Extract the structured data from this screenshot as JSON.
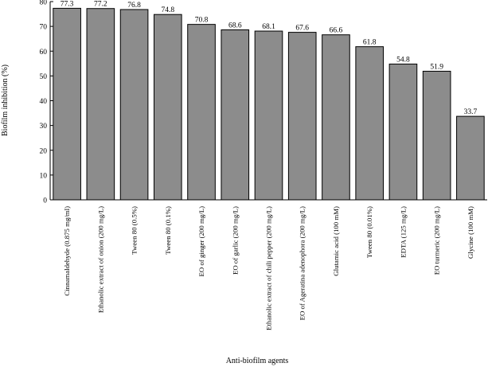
{
  "chart_data": {
    "type": "bar",
    "title": "",
    "xlabel": "Anti-biofilm agents",
    "ylabel": "Biofilm inhibition (%)",
    "ylim": [
      0,
      80
    ],
    "yticks": [
      0,
      10,
      20,
      30,
      40,
      50,
      60,
      70,
      80
    ],
    "categories": [
      "Cinnamaldehyde (0.875 mg/ml)",
      "Ethanolic extract of onion (200 mg/L)",
      "Tween 80 (0.5%)",
      "Tween 80 (0.1%)",
      "EO of ginger (200 mg/L)",
      "EO of garlic (200 mg/L)",
      "Ethanolic extract of chili pepper (200 mg/L)",
      "EO of Ageratina adenophora (200 mg/L)",
      "Glutamic acid (100 mM)",
      "Tween 80 (0.01%)",
      "EDTA (125 mg/L)",
      "EO turmeric (200 mg/L)",
      "Glycine (100 mM)"
    ],
    "values": [
      77.3,
      77.2,
      76.8,
      74.8,
      70.8,
      68.6,
      68.1,
      67.6,
      66.6,
      61.8,
      54.8,
      51.9,
      33.7
    ],
    "value_labels": [
      "77.3",
      "77.2",
      "76.8",
      "74.8",
      "70.8",
      "68.6",
      "68.1",
      "67.6",
      "66.6",
      "61.8",
      "54.8",
      "51.9",
      "33.7"
    ],
    "bar_color": "#8c8c8c",
    "grid": false,
    "legend": "none"
  }
}
